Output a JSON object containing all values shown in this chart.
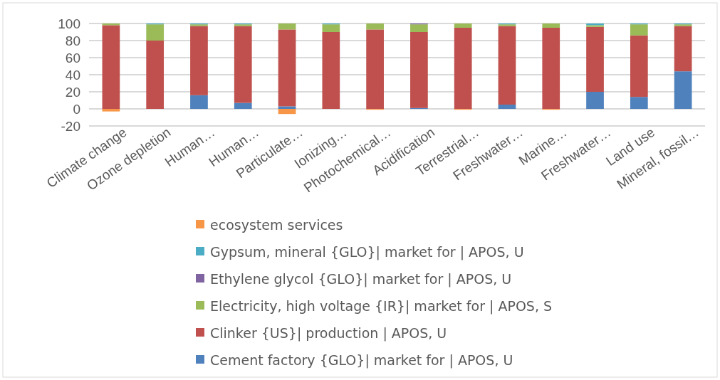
{
  "chart_data": {
    "type": "bar",
    "stacked": true,
    "categories": [
      "Climate change",
      "Ozone depletion",
      "Human…",
      "Human…",
      "Particulate…",
      "Ionizing…",
      "Photochemical…",
      "Acidification",
      "Terrestrial…",
      "Freshwater…",
      "Marine…",
      "Freshwater…",
      "Land use",
      "Mineral, fossil…"
    ],
    "series": [
      {
        "name": "Cement factory {GLO}| market for | APOS, U",
        "color": "#4f81bd",
        "values": [
          0,
          0,
          16,
          7,
          3,
          0,
          0,
          1,
          0,
          5,
          0,
          20,
          14,
          44
        ]
      },
      {
        "name": "Clinker {US}| production | APOS, U",
        "color": "#c0504d",
        "values": [
          98,
          80,
          81,
          90,
          90,
          90,
          93,
          89,
          95,
          92,
          95,
          76,
          72,
          53
        ]
      },
      {
        "name": "Electricity, high voltage {IR}| market for | APOS, S",
        "color": "#9bbb59",
        "values": [
          2,
          19,
          2,
          2,
          7,
          9,
          7,
          9,
          5,
          2,
          5,
          2,
          13,
          2
        ]
      },
      {
        "name": "Ethylene glycol {GLO}| market for | APOS, U",
        "color": "#8064a2",
        "values": [
          0,
          0,
          0,
          0,
          0,
          0,
          0,
          1,
          0,
          0,
          0,
          0,
          0,
          0
        ]
      },
      {
        "name": "Gypsum, mineral {GLO}| market for | APOS, U",
        "color": "#4bacc6",
        "values": [
          0,
          1,
          1,
          1,
          0,
          1,
          0,
          0,
          0,
          1,
          0,
          2,
          1,
          1
        ]
      },
      {
        "name": "ecosystem services",
        "color": "#f79646",
        "values": [
          -3,
          0,
          0,
          0,
          -6,
          0,
          -1,
          0,
          -1,
          0,
          -1,
          0,
          0,
          0
        ]
      }
    ],
    "ylim": [
      -20,
      100
    ],
    "yticks": [
      -20,
      0,
      20,
      40,
      60,
      80,
      100
    ],
    "grid": "y",
    "legend": "bottom"
  }
}
